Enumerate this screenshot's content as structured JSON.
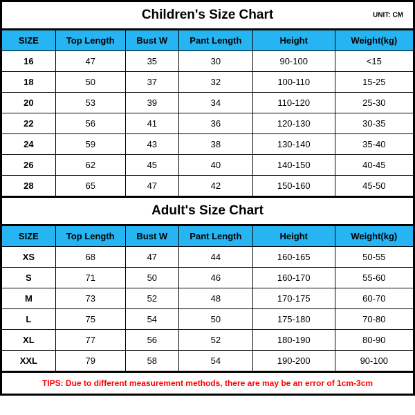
{
  "colors": {
    "header_bg": "#26b5f2",
    "border": "#000000",
    "tips_text": "#ff0000",
    "background": "#ffffff",
    "text": "#000000"
  },
  "typography": {
    "title_fontsize": 19,
    "header_fontsize": 13,
    "cell_fontsize": 13,
    "unit_fontsize": 10,
    "tips_fontsize": 12,
    "font_family": "Arial"
  },
  "children": {
    "title": "Children's Size Chart",
    "unit": "UNIT: CM",
    "columns": [
      "SIZE",
      "Top Length",
      "Bust W",
      "Pant Length",
      "Height",
      "Weight(kg)"
    ],
    "rows": [
      [
        "16",
        "47",
        "35",
        "30",
        "90-100",
        "<15"
      ],
      [
        "18",
        "50",
        "37",
        "32",
        "100-110",
        "15-25"
      ],
      [
        "20",
        "53",
        "39",
        "34",
        "110-120",
        "25-30"
      ],
      [
        "22",
        "56",
        "41",
        "36",
        "120-130",
        "30-35"
      ],
      [
        "24",
        "59",
        "43",
        "38",
        "130-140",
        "35-40"
      ],
      [
        "26",
        "62",
        "45",
        "40",
        "140-150",
        "40-45"
      ],
      [
        "28",
        "65",
        "47",
        "42",
        "150-160",
        "45-50"
      ]
    ]
  },
  "adult": {
    "title": "Adult's Size Chart",
    "columns": [
      "SIZE",
      "Top Length",
      "Bust W",
      "Pant Length",
      "Height",
      "Weight(kg)"
    ],
    "rows": [
      [
        "XS",
        "68",
        "47",
        "44",
        "160-165",
        "50-55"
      ],
      [
        "S",
        "71",
        "50",
        "46",
        "160-170",
        "55-60"
      ],
      [
        "M",
        "73",
        "52",
        "48",
        "170-175",
        "60-70"
      ],
      [
        "L",
        "75",
        "54",
        "50",
        "175-180",
        "70-80"
      ],
      [
        "XL",
        "77",
        "56",
        "52",
        "180-190",
        "80-90"
      ],
      [
        "XXL",
        "79",
        "58",
        "54",
        "190-200",
        "90-100"
      ]
    ]
  },
  "tips": "TIPS: Due to different measurement methods, there are may be an error of 1cm-3cm"
}
